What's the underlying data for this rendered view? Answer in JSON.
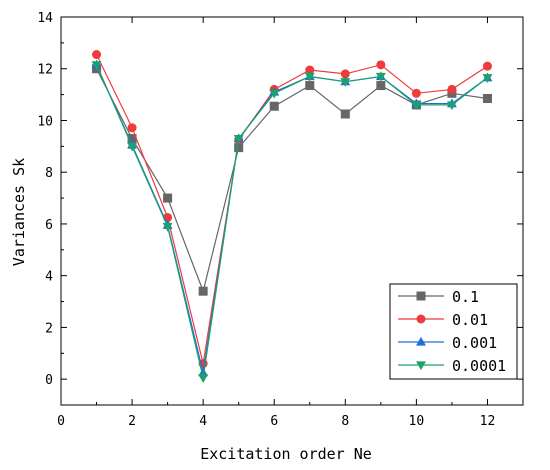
{
  "chart_data": {
    "type": "line",
    "xlabel": "Excitation order Ne",
    "ylabel": "Variances Sk",
    "xlim": [
      0,
      13
    ],
    "ylim": [
      -1,
      14
    ],
    "xticks": [
      0,
      2,
      4,
      6,
      8,
      10,
      12
    ],
    "yticks": [
      0,
      2,
      4,
      6,
      8,
      10,
      12,
      14
    ],
    "grid": false,
    "legend_position": "bottom-right",
    "x": [
      1,
      2,
      3,
      4,
      5,
      6,
      7,
      8,
      9,
      10,
      11,
      12
    ],
    "series": [
      {
        "name": "0.1",
        "color": "#666666",
        "marker": "square",
        "values": [
          12.0,
          9.3,
          7.0,
          3.4,
          8.95,
          10.55,
          11.35,
          10.25,
          11.35,
          10.6,
          11.05,
          10.85
        ]
      },
      {
        "name": "0.01",
        "color": "#ef3b3b",
        "marker": "circle",
        "values": [
          12.55,
          9.72,
          6.25,
          0.6,
          9.25,
          11.2,
          11.95,
          11.8,
          12.15,
          11.05,
          11.2,
          12.1
        ]
      },
      {
        "name": "0.001",
        "color": "#1f6fdc",
        "marker": "triangle-up",
        "values": [
          12.15,
          9.05,
          5.95,
          0.25,
          9.3,
          11.1,
          11.7,
          11.5,
          11.7,
          10.65,
          10.65,
          11.65
        ]
      },
      {
        "name": "0.0001",
        "color": "#1aa36a",
        "marker": "triangle-down",
        "values": [
          12.15,
          9.0,
          5.9,
          0.05,
          9.3,
          11.05,
          11.7,
          11.5,
          11.7,
          10.6,
          10.6,
          11.65
        ]
      }
    ]
  }
}
